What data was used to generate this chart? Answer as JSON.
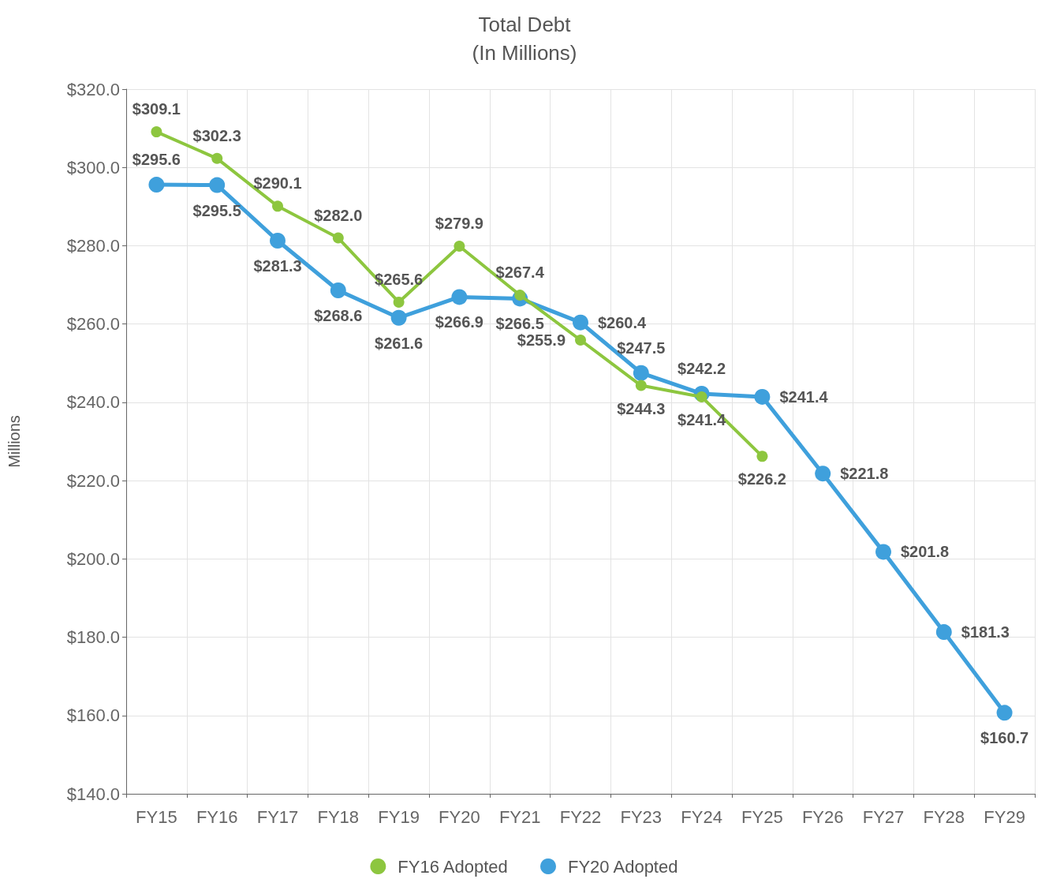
{
  "chart_data": {
    "type": "line",
    "title": "Total Debt\n(In Millions)",
    "ylabel": "Millions",
    "categories": [
      "FY15",
      "FY16",
      "FY17",
      "FY18",
      "FY19",
      "FY20",
      "FY21",
      "FY22",
      "FY23",
      "FY24",
      "FY25",
      "FY26",
      "FY27",
      "FY28",
      "FY29"
    ],
    "series": [
      {
        "name": "FY16 Adopted",
        "color": "#8dc63f",
        "values": [
          309.1,
          302.3,
          290.1,
          282.0,
          265.6,
          279.9,
          267.4,
          255.9,
          244.3,
          241.4,
          226.2,
          null,
          null,
          null,
          null
        ],
        "value_labels": [
          "$309.1",
          "$302.3",
          "$290.1",
          "$282.0",
          "$265.6",
          "$279.9",
          "$267.4",
          "$255.9",
          "$244.3",
          "$241.4",
          "$226.2",
          null,
          null,
          null,
          null
        ]
      },
      {
        "name": "FY20 Adopted",
        "color": "#3fa0dc",
        "values": [
          295.6,
          295.5,
          281.3,
          268.6,
          261.6,
          266.9,
          266.5,
          260.4,
          247.5,
          242.2,
          241.4,
          221.8,
          201.8,
          181.3,
          160.7
        ],
        "value_labels": [
          "$295.6",
          "$295.5",
          "$281.3",
          "$268.6",
          "$261.6",
          "$266.9",
          "$266.5",
          "$260.4",
          "$247.5",
          "$242.2",
          "$241.4",
          "$221.8",
          "$201.8",
          "$181.3",
          "$160.7"
        ]
      }
    ],
    "ylim": [
      140,
      320
    ],
    "yticks": [
      {
        "value": 140,
        "label": "$140.0"
      },
      {
        "value": 160,
        "label": "$160.0"
      },
      {
        "value": 180,
        "label": "$180.0"
      },
      {
        "value": 200,
        "label": "$200.0"
      },
      {
        "value": 220,
        "label": "$220.0"
      },
      {
        "value": 240,
        "label": "$240.0"
      },
      {
        "value": 260,
        "label": "$260.0"
      },
      {
        "value": 280,
        "label": "$280.0"
      },
      {
        "value": 300,
        "label": "$300.0"
      },
      {
        "value": 320,
        "label": "$320.0"
      }
    ],
    "grid": true,
    "legend": "bottom",
    "marker": "circle",
    "line_style": "solid"
  }
}
